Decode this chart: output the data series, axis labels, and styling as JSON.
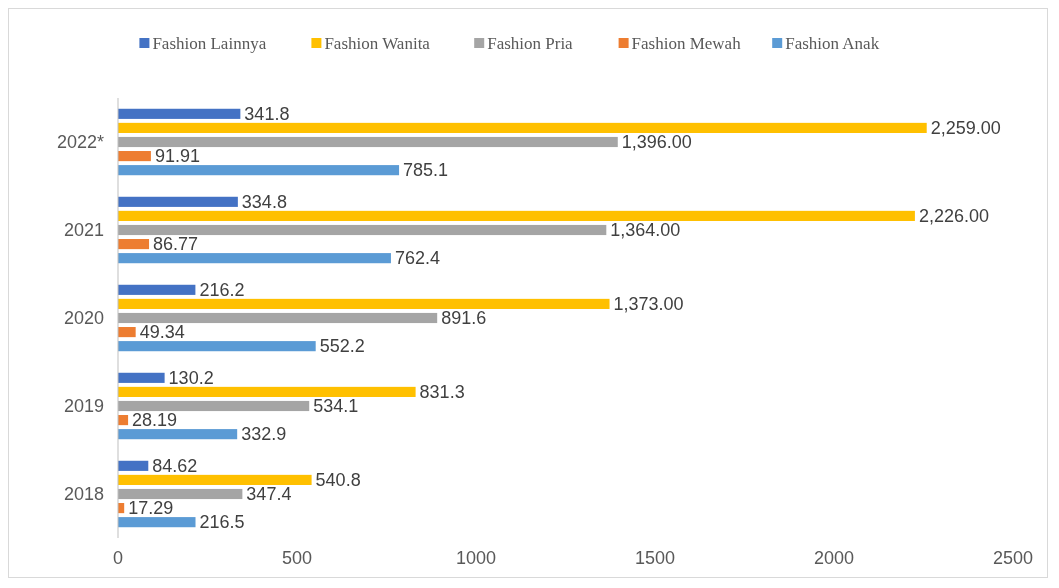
{
  "chart_data": {
    "type": "bar",
    "orientation": "horizontal",
    "categories": [
      "2022*",
      "2021",
      "2020",
      "2019",
      "2018"
    ],
    "series": [
      {
        "name": "Fashion Lainnya",
        "color": "#4472c4",
        "values": [
          341.8,
          334.8,
          216.2,
          130.2,
          84.62
        ],
        "value_labels": [
          "341.8",
          "334.8",
          "216.2",
          "130.2",
          "84.62"
        ]
      },
      {
        "name": "Fashion Wanita",
        "color": "#ffc000",
        "values": [
          2259,
          2226,
          1373,
          831.3,
          540.8
        ],
        "value_labels": [
          "2,259.00",
          "2,226.00",
          "1,373.00",
          "831.3",
          "540.8"
        ]
      },
      {
        "name": "Fashion Pria",
        "color": "#a5a5a5",
        "values": [
          1396,
          1364,
          891.6,
          534.1,
          347.4
        ],
        "value_labels": [
          "1,396.00",
          "1,364.00",
          "891.6",
          "534.1",
          "347.4"
        ]
      },
      {
        "name": "Fashion Mewah",
        "color": "#ed7d31",
        "values": [
          91.91,
          86.77,
          49.34,
          28.19,
          17.29
        ],
        "value_labels": [
          "91.91",
          "86.77",
          "49.34",
          "28.19",
          "17.29"
        ]
      },
      {
        "name": "Fashion Anak",
        "color": "#5b9bd5",
        "values": [
          785.1,
          762.4,
          552.2,
          332.9,
          216.5
        ],
        "value_labels": [
          "785.1",
          "762.4",
          "552.2",
          "332.9",
          "216.5"
        ]
      }
    ],
    "xlim": [
      0,
      2500
    ],
    "xticks": [
      0,
      500,
      1000,
      1500,
      2000,
      2500
    ],
    "grid": false,
    "legend": "top"
  }
}
